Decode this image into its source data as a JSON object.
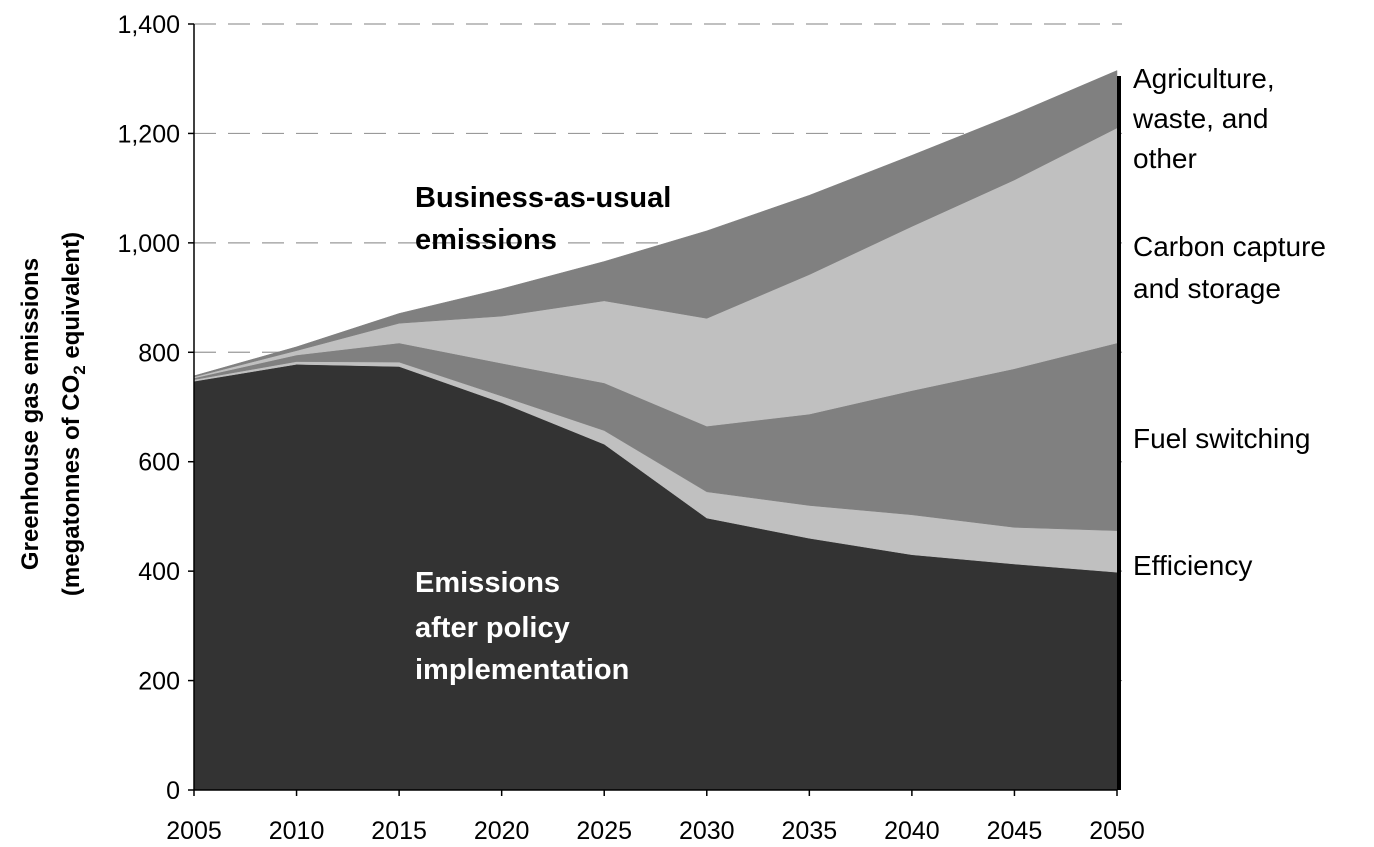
{
  "chart_data": {
    "type": "area",
    "stacked": true,
    "title": "",
    "xlabel": "",
    "ylabel": {
      "line1": "Greenhouse gas emissions",
      "line2_prefix": "(megatonnes of CO",
      "line2_sub": "2",
      "line2_suffix": " equivalent)"
    },
    "x": [
      2005,
      2010,
      2015,
      2020,
      2025,
      2030,
      2035,
      2040,
      2045,
      2050
    ],
    "xtick_labels": [
      "2005",
      "2010",
      "2015",
      "2020",
      "2025",
      "2030",
      "2035",
      "2040",
      "2045",
      "2050"
    ],
    "ylim": [
      0,
      1400
    ],
    "yticks": [
      0,
      200,
      400,
      600,
      800,
      1000,
      1200,
      1400
    ],
    "ytick_labels": [
      "0",
      "200",
      "400",
      "600",
      "800",
      "1,000",
      "1,200",
      "1,400"
    ],
    "grid": "horizontal dashed",
    "series": [
      {
        "name": "Emissions after policy implementation",
        "color": "#333333",
        "values": [
          747,
          778,
          774,
          708,
          632,
          497,
          460,
          430,
          413,
          398
        ]
      },
      {
        "name": "Efficiency",
        "color": "#c0c0c0",
        "values": [
          3,
          5,
          8,
          12,
          25,
          48,
          60,
          73,
          67,
          76
        ]
      },
      {
        "name": "Fuel switching",
        "color": "#808080",
        "values": [
          3,
          12,
          35,
          60,
          87,
          120,
          167,
          227,
          290,
          343
        ]
      },
      {
        "name": "Carbon capture and storage",
        "color": "#c0c0c0",
        "values": [
          2,
          8,
          36,
          86,
          150,
          197,
          255,
          300,
          345,
          393
        ]
      },
      {
        "name": "Agriculture, waste, and other",
        "color": "#808080",
        "values": [
          2,
          7,
          18,
          50,
          72,
          160,
          145,
          130,
          120,
          105
        ]
      }
    ],
    "annotations": {
      "bau": [
        "Business-as-usual",
        "emissions"
      ],
      "after": [
        "Emissions",
        "after policy",
        "implementation"
      ]
    },
    "legend": {
      "placement": "right",
      "agriculture": [
        "Agriculture,",
        "waste, and",
        "other"
      ],
      "ccs": [
        "Carbon capture",
        "and storage"
      ],
      "fuel": [
        "Fuel switching"
      ],
      "efficiency": [
        "Efficiency"
      ]
    }
  }
}
